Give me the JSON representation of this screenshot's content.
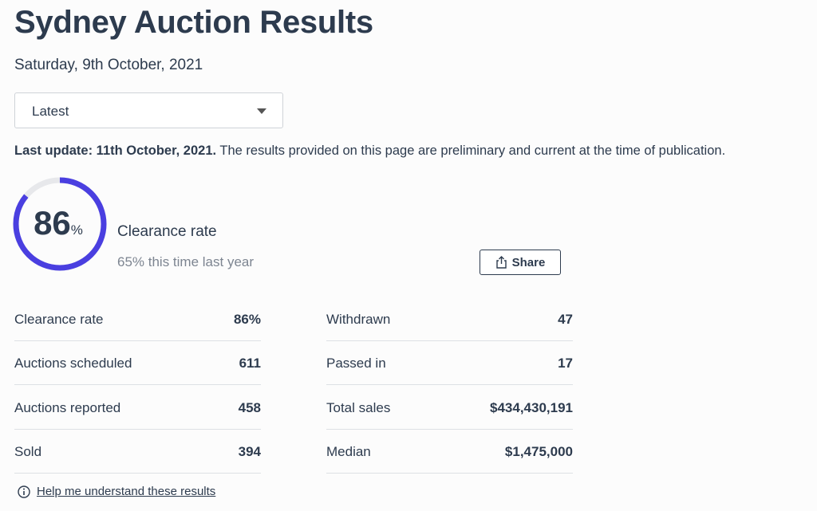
{
  "header": {
    "title": "Sydney Auction Results",
    "date": "Saturday, 9th October, 2021"
  },
  "dropdown": {
    "selected": "Latest"
  },
  "update": {
    "label": "Last update: 11th October, 2021.",
    "text": "The results provided on this page are preliminary and current at the time of publication."
  },
  "gauge": {
    "value": 86,
    "unit": "%",
    "label": "Clearance rate",
    "comparison": "65% this time last year"
  },
  "share": "Share",
  "stats": {
    "left": [
      {
        "label": "Clearance rate",
        "value": "86%"
      },
      {
        "label": "Auctions scheduled",
        "value": "611"
      },
      {
        "label": "Auctions reported",
        "value": "458"
      },
      {
        "label": "Sold",
        "value": "394"
      }
    ],
    "right": [
      {
        "label": "Withdrawn",
        "value": "47"
      },
      {
        "label": "Passed in",
        "value": "17"
      },
      {
        "label": "Total sales",
        "value": "$434,430,191"
      },
      {
        "label": "Median",
        "value": "$1,475,000"
      }
    ]
  },
  "help": "Help me understand these results"
}
